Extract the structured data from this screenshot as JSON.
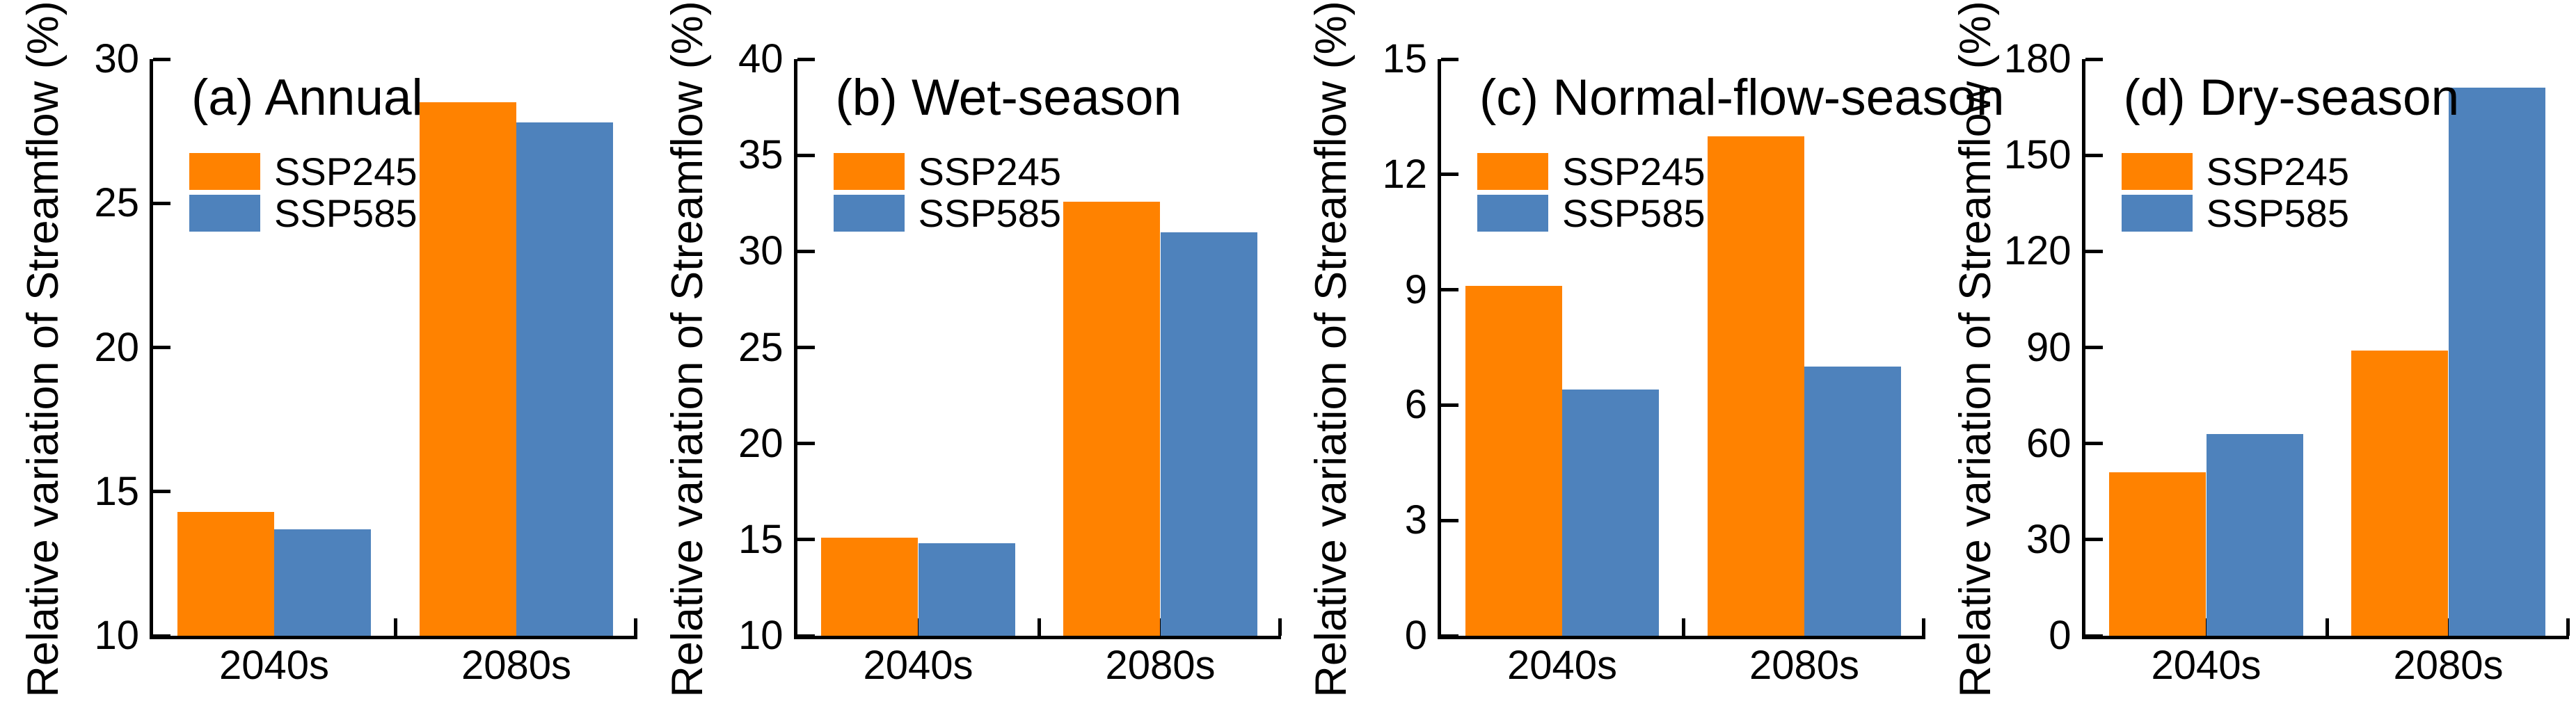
{
  "figure": {
    "background": "#FFFFFF",
    "panels": 4
  },
  "chart_data": [
    {
      "type": "bar",
      "title": "(a) Annual",
      "ylabel": "Relative variation of Streamflow (%)",
      "categories": [
        "2040s",
        "2080s"
      ],
      "series": [
        {
          "name": "SSP245",
          "color": "#FF8200",
          "values": [
            14.3,
            28.5
          ]
        },
        {
          "name": "SSP585",
          "color": "#4E82BC",
          "values": [
            13.7,
            27.8
          ]
        }
      ],
      "ylim": [
        10,
        30
      ],
      "yticks": [
        10,
        15,
        20,
        25,
        30
      ],
      "grid": false,
      "legend_position": "top-left"
    },
    {
      "type": "bar",
      "title": "(b) Wet-season",
      "ylabel": "Relative variation of Streamflow (%)",
      "categories": [
        "2040s",
        "2080s"
      ],
      "series": [
        {
          "name": "SSP245",
          "color": "#FF8200",
          "values": [
            15.1,
            32.6
          ]
        },
        {
          "name": "SSP585",
          "color": "#4E82BC",
          "values": [
            14.8,
            31.0
          ]
        }
      ],
      "ylim": [
        10,
        40
      ],
      "yticks": [
        10,
        15,
        20,
        25,
        30,
        35,
        40
      ],
      "grid": false,
      "legend_position": "top-left"
    },
    {
      "type": "bar",
      "title": "(c) Normal-flow-season",
      "ylabel": "Relative variation of Streamflow (%)",
      "categories": [
        "2040s",
        "2080s"
      ],
      "series": [
        {
          "name": "SSP245",
          "color": "#FF8200",
          "values": [
            9.1,
            13.0
          ]
        },
        {
          "name": "SSP585",
          "color": "#4E82BC",
          "values": [
            6.4,
            7.0
          ]
        }
      ],
      "ylim": [
        0,
        15
      ],
      "yticks": [
        0,
        3,
        6,
        9,
        12,
        15
      ],
      "grid": false,
      "legend_position": "top-left"
    },
    {
      "type": "bar",
      "title": "(d) Dry-season",
      "ylabel": "Relative variation of Streamflow (%)",
      "categories": [
        "2040s",
        "2080s"
      ],
      "series": [
        {
          "name": "SSP245",
          "color": "#FF8200",
          "values": [
            51,
            89
          ]
        },
        {
          "name": "SSP585",
          "color": "#4E82BC",
          "values": [
            63,
            171
          ]
        }
      ],
      "ylim": [
        0,
        180
      ],
      "yticks": [
        0,
        30,
        60,
        90,
        120,
        150,
        180
      ],
      "grid": false,
      "legend_position": "top-left"
    }
  ]
}
